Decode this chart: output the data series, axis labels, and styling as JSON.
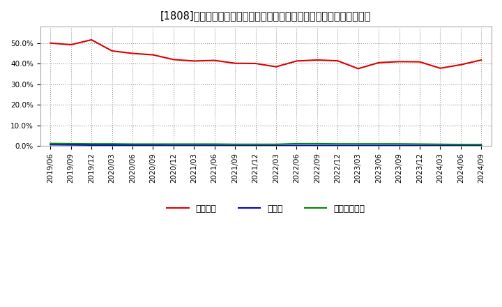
{
  "title": "[1808]　自己資本、のれん、繰延税金資産の総資産に対する比率の推移",
  "dates": [
    "2019/06",
    "2019/09",
    "2019/12",
    "2020/03",
    "2020/06",
    "2020/09",
    "2020/12",
    "2021/03",
    "2021/06",
    "2021/09",
    "2021/12",
    "2022/03",
    "2022/06",
    "2022/09",
    "2022/12",
    "2023/03",
    "2023/06",
    "2023/09",
    "2023/12",
    "2024/03",
    "2024/06",
    "2024/09"
  ],
  "equity": [
    0.5,
    0.492,
    0.516,
    0.462,
    0.45,
    0.443,
    0.42,
    0.413,
    0.416,
    0.402,
    0.401,
    0.385,
    0.413,
    0.418,
    0.414,
    0.376,
    0.405,
    0.41,
    0.409,
    0.378,
    0.395,
    0.418
  ],
  "goodwill": [
    0.007,
    0.006,
    0.005,
    0.005,
    0.005,
    0.005,
    0.004,
    0.004,
    0.004,
    0.003,
    0.003,
    0.003,
    0.003,
    0.003,
    0.003,
    0.003,
    0.003,
    0.003,
    0.003,
    0.003,
    0.002,
    0.002
  ],
  "deferred_tax": [
    0.013,
    0.012,
    0.011,
    0.011,
    0.01,
    0.01,
    0.01,
    0.01,
    0.01,
    0.009,
    0.009,
    0.009,
    0.012,
    0.012,
    0.011,
    0.011,
    0.011,
    0.011,
    0.01,
    0.009,
    0.008,
    0.008
  ],
  "equity_color": "#dd0000",
  "goodwill_color": "#0000cc",
  "deferred_tax_color": "#008800",
  "bg_color": "#ffffff",
  "plot_bg_color": "#ffffff",
  "grid_color": "#999999",
  "legend_labels": [
    "自己資本",
    "のれん",
    "繰延税金資産"
  ],
  "title_fontsize": 10.5,
  "legend_fontsize": 9,
  "tick_fontsize": 7.5,
  "ylim": [
    0.0,
    0.58
  ],
  "yticks": [
    0.0,
    0.1,
    0.2,
    0.3,
    0.4,
    0.5
  ]
}
